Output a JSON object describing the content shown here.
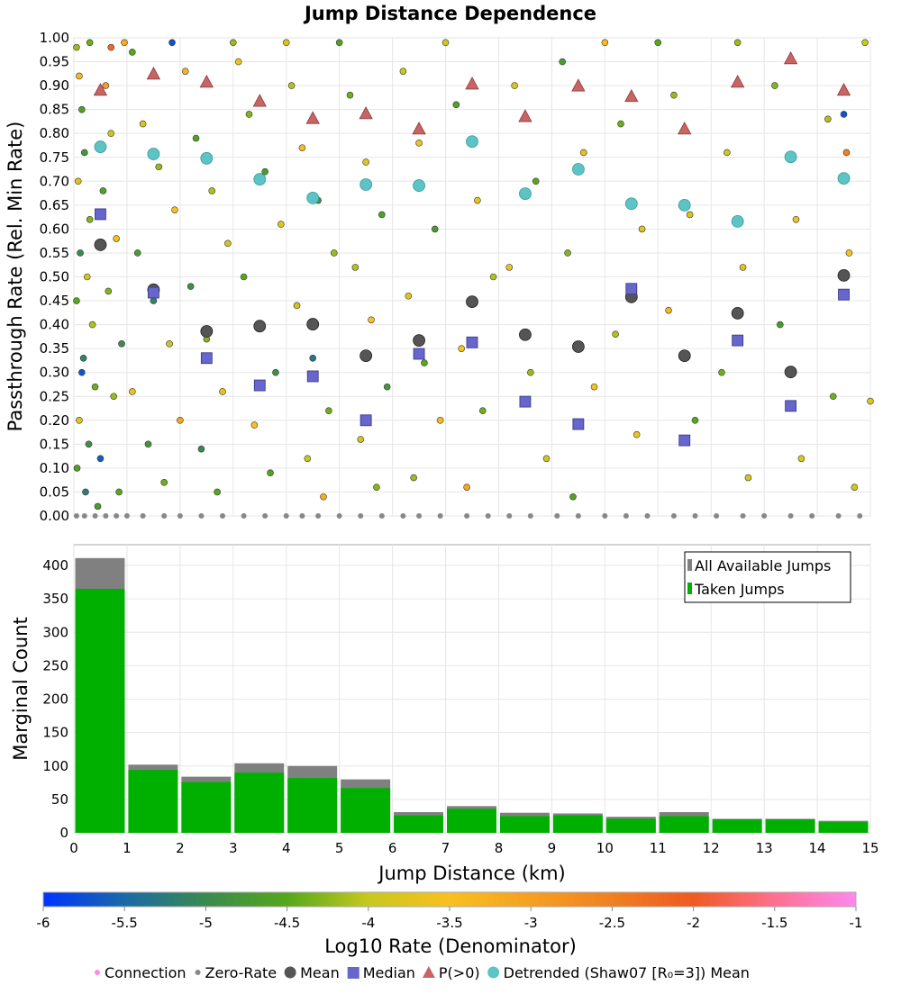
{
  "chart_data": [
    {
      "type": "scatter",
      "title": "Jump Distance Dependence",
      "ylabel": "Passthrough Rate (Rel. Min Rate)",
      "xlim": [
        0,
        15
      ],
      "ylim": [
        0,
        1
      ],
      "yticks": [
        "0.00",
        "0.05",
        "0.10",
        "0.15",
        "0.20",
        "0.25",
        "0.30",
        "0.35",
        "0.40",
        "0.45",
        "0.50",
        "0.55",
        "0.60",
        "0.65",
        "0.70",
        "0.75",
        "0.80",
        "0.85",
        "0.90",
        "0.95",
        "1.00"
      ],
      "grid": true,
      "connection_points_x_y_log10rate": [
        [
          0.05,
          0.98,
          -4.2
        ],
        [
          0.1,
          0.92,
          -3.4
        ],
        [
          0.15,
          0.85,
          -4.6
        ],
        [
          0.2,
          0.76,
          -4.8
        ],
        [
          0.08,
          0.7,
          -3.8
        ],
        [
          0.3,
          0.62,
          -4.3
        ],
        [
          0.12,
          0.55,
          -5.0
        ],
        [
          0.25,
          0.5,
          -3.9
        ],
        [
          0.05,
          0.45,
          -4.5
        ],
        [
          0.35,
          0.4,
          -4.1
        ],
        [
          0.18,
          0.33,
          -5.1
        ],
        [
          0.4,
          0.27,
          -4.4
        ],
        [
          0.1,
          0.2,
          -3.7
        ],
        [
          0.28,
          0.15,
          -4.9
        ],
        [
          0.06,
          0.1,
          -4.6
        ],
        [
          0.22,
          0.05,
          -5.2
        ],
        [
          0.45,
          0.02,
          -4.7
        ],
        [
          0.6,
          0.9,
          -3.0
        ],
        [
          0.7,
          0.8,
          -4.0
        ],
        [
          0.55,
          0.68,
          -4.6
        ],
        [
          0.8,
          0.58,
          -3.6
        ],
        [
          0.65,
          0.47,
          -4.3
        ],
        [
          0.9,
          0.36,
          -5.0
        ],
        [
          0.75,
          0.25,
          -4.2
        ],
        [
          0.5,
          0.12,
          -5.6
        ],
        [
          0.85,
          0.05,
          -4.5
        ],
        [
          0.95,
          0.99,
          -3.2
        ],
        [
          0.3,
          0.99,
          -4.4
        ],
        [
          0.7,
          0.98,
          -2.2
        ],
        [
          0.15,
          0.3,
          -5.7
        ],
        [
          1.1,
          0.97,
          -4.5
        ],
        [
          1.3,
          0.82,
          -3.8
        ],
        [
          1.6,
          0.73,
          -4.2
        ],
        [
          1.9,
          0.64,
          -3.5
        ],
        [
          1.2,
          0.55,
          -4.7
        ],
        [
          1.5,
          0.45,
          -5.1
        ],
        [
          1.8,
          0.36,
          -4.0
        ],
        [
          1.1,
          0.26,
          -3.6
        ],
        [
          1.4,
          0.15,
          -4.8
        ],
        [
          1.7,
          0.07,
          -4.4
        ],
        [
          2.1,
          0.93,
          -3.3
        ],
        [
          2.3,
          0.79,
          -4.6
        ],
        [
          2.6,
          0.68,
          -4.1
        ],
        [
          2.9,
          0.57,
          -3.9
        ],
        [
          2.2,
          0.48,
          -4.9
        ],
        [
          2.5,
          0.37,
          -4.3
        ],
        [
          2.8,
          0.26,
          -3.7
        ],
        [
          2.4,
          0.14,
          -5.0
        ],
        [
          2.7,
          0.05,
          -4.5
        ],
        [
          1.85,
          0.99,
          -5.7
        ],
        [
          2.0,
          0.2,
          -3.1
        ],
        [
          3.1,
          0.95,
          -3.6
        ],
        [
          3.3,
          0.84,
          -4.3
        ],
        [
          3.6,
          0.72,
          -4.7
        ],
        [
          3.9,
          0.61,
          -3.8
        ],
        [
          3.2,
          0.5,
          -4.5
        ],
        [
          3.5,
          0.4,
          -4.0
        ],
        [
          3.8,
          0.3,
          -4.9
        ],
        [
          3.4,
          0.19,
          -3.5
        ],
        [
          3.7,
          0.09,
          -4.6
        ],
        [
          4.1,
          0.9,
          -4.1
        ],
        [
          4.3,
          0.77,
          -3.4
        ],
        [
          4.6,
          0.66,
          -4.8
        ],
        [
          4.9,
          0.55,
          -4.2
        ],
        [
          4.2,
          0.44,
          -3.9
        ],
        [
          4.5,
          0.33,
          -5.3
        ],
        [
          4.8,
          0.22,
          -4.4
        ],
        [
          4.4,
          0.12,
          -4.0
        ],
        [
          4.7,
          0.04,
          -3.2
        ],
        [
          3.0,
          0.99,
          -4.2
        ],
        [
          4.0,
          0.99,
          -3.8
        ],
        [
          5.2,
          0.88,
          -4.4
        ],
        [
          5.5,
          0.74,
          -3.7
        ],
        [
          5.8,
          0.63,
          -4.6
        ],
        [
          5.3,
          0.52,
          -4.1
        ],
        [
          5.6,
          0.41,
          -3.5
        ],
        [
          5.9,
          0.27,
          -4.8
        ],
        [
          5.4,
          0.16,
          -3.9
        ],
        [
          5.7,
          0.06,
          -4.3
        ],
        [
          6.2,
          0.93,
          -4.0
        ],
        [
          6.5,
          0.78,
          -3.6
        ],
        [
          6.8,
          0.6,
          -4.7
        ],
        [
          6.3,
          0.46,
          -3.8
        ],
        [
          6.6,
          0.32,
          -4.5
        ],
        [
          6.9,
          0.2,
          -3.4
        ],
        [
          6.4,
          0.08,
          -4.2
        ],
        [
          7.2,
          0.86,
          -4.6
        ],
        [
          7.6,
          0.66,
          -3.7
        ],
        [
          7.9,
          0.5,
          -4.1
        ],
        [
          7.3,
          0.35,
          -3.5
        ],
        [
          7.7,
          0.22,
          -4.4
        ],
        [
          7.4,
          0.06,
          -3.1
        ],
        [
          5.0,
          0.99,
          -4.6
        ],
        [
          7.0,
          0.99,
          -3.9
        ],
        [
          8.3,
          0.9,
          -3.8
        ],
        [
          8.7,
          0.7,
          -4.5
        ],
        [
          8.2,
          0.52,
          -3.6
        ],
        [
          8.6,
          0.3,
          -4.2
        ],
        [
          8.9,
          0.12,
          -3.9
        ],
        [
          9.2,
          0.95,
          -4.7
        ],
        [
          9.6,
          0.76,
          -3.7
        ],
        [
          9.3,
          0.55,
          -4.3
        ],
        [
          9.8,
          0.27,
          -3.5
        ],
        [
          9.4,
          0.04,
          -4.6
        ],
        [
          10.3,
          0.82,
          -4.4
        ],
        [
          10.7,
          0.6,
          -3.8
        ],
        [
          10.2,
          0.38,
          -4.1
        ],
        [
          10.6,
          0.17,
          -3.6
        ],
        [
          11.3,
          0.88,
          -4.2
        ],
        [
          11.6,
          0.63,
          -3.9
        ],
        [
          11.2,
          0.43,
          -3.3
        ],
        [
          11.7,
          0.2,
          -4.5
        ],
        [
          12.3,
          0.76,
          -4.0
        ],
        [
          12.6,
          0.52,
          -3.7
        ],
        [
          12.2,
          0.3,
          -4.4
        ],
        [
          12.7,
          0.08,
          -3.9
        ],
        [
          13.2,
          0.9,
          -4.3
        ],
        [
          13.6,
          0.62,
          -3.6
        ],
        [
          13.3,
          0.4,
          -4.7
        ],
        [
          13.7,
          0.12,
          -3.8
        ],
        [
          14.2,
          0.83,
          -4.1
        ],
        [
          14.6,
          0.55,
          -3.5
        ],
        [
          14.3,
          0.25,
          -4.4
        ],
        [
          14.7,
          0.06,
          -3.9
        ],
        [
          14.5,
          0.84,
          -5.7
        ],
        [
          14.55,
          0.76,
          -2.5
        ],
        [
          12.5,
          0.99,
          -4.2
        ],
        [
          10.0,
          0.99,
          -3.4
        ],
        [
          11.0,
          0.99,
          -4.5
        ],
        [
          14.9,
          0.99,
          -4.0
        ],
        [
          15.0,
          0.24,
          -3.8
        ]
      ],
      "zero_rate_x": [
        0.05,
        0.2,
        0.4,
        0.6,
        0.8,
        1.0,
        1.3,
        1.7,
        2.0,
        2.4,
        2.8,
        3.2,
        3.6,
        4.0,
        4.3,
        4.6,
        5.0,
        5.4,
        5.8,
        6.2,
        6.5,
        6.9,
        7.4,
        7.8,
        8.2,
        8.6,
        9.1,
        9.5,
        10.0,
        10.4,
        10.8,
        11.3,
        11.7,
        12.1,
        12.6,
        13.0,
        13.5,
        13.9,
        14.4,
        14.8
      ],
      "bin_centers": [
        0.5,
        1.5,
        2.5,
        3.5,
        4.5,
        5.5,
        6.5,
        7.5,
        8.5,
        9.5,
        10.5,
        11.5,
        12.5,
        13.5,
        14.5
      ],
      "series": [
        {
          "name": "Mean",
          "values": [
            0.567,
            0.473,
            0.386,
            0.397,
            0.401,
            0.335,
            0.367,
            0.448,
            0.379,
            0.354,
            0.458,
            0.335,
            0.424,
            0.301,
            0.503
          ]
        },
        {
          "name": "Median",
          "values": [
            0.631,
            0.467,
            0.33,
            0.273,
            0.292,
            0.2,
            0.339,
            0.363,
            0.239,
            0.192,
            0.475,
            0.158,
            0.367,
            0.23,
            0.463
          ]
        },
        {
          "name": "P(>0)",
          "values": [
            0.891,
            0.925,
            0.908,
            0.868,
            0.832,
            0.842,
            0.81,
            0.904,
            0.836,
            0.9,
            0.878,
            0.81,
            0.908,
            0.957,
            0.891
          ]
        },
        {
          "name": "Detrended (Shaw07 [R₀=3]) Mean",
          "values": [
            0.772,
            0.757,
            0.748,
            0.704,
            0.665,
            0.693,
            0.691,
            0.783,
            0.674,
            0.725,
            0.653,
            0.65,
            0.616,
            0.751,
            0.706
          ]
        }
      ]
    },
    {
      "type": "bar",
      "xlabel": "Jump Distance (km)",
      "ylabel": "Marginal Count",
      "xlim": [
        0,
        15
      ],
      "ylim": [
        0,
        420
      ],
      "xticks": [
        "0",
        "1",
        "2",
        "3",
        "4",
        "5",
        "6",
        "7",
        "8",
        "9",
        "10",
        "11",
        "12",
        "13",
        "14",
        "15"
      ],
      "yticks": [
        "0",
        "50",
        "100",
        "150",
        "200",
        "250",
        "300",
        "350",
        "400"
      ],
      "legend_position": "top-right",
      "series": [
        {
          "name": "All Available Jumps",
          "color": "#808080",
          "values": [
            411,
            102,
            84,
            104,
            100,
            80,
            31,
            40,
            30,
            29,
            24,
            31,
            21,
            21,
            18
          ]
        },
        {
          "name": "Taken Jumps",
          "color": "#00b000",
          "values": [
            365,
            94,
            76,
            90,
            82,
            67,
            26,
            36,
            25,
            26,
            21,
            25,
            20,
            20,
            16
          ]
        }
      ]
    }
  ],
  "colorbar": {
    "label": "Log10 Rate (Denominator)",
    "range": [
      -6,
      -1
    ],
    "ticks": [
      "-6",
      "-5.5",
      "-5",
      "-4.5",
      "-4",
      "-3.5",
      "-3",
      "-2.5",
      "-2",
      "-1.5",
      "-1"
    ],
    "stops": [
      "#0033ff",
      "#1a6aa8",
      "#3a8a50",
      "#55a81a",
      "#c8c81e",
      "#f8c020",
      "#f5a020",
      "#f08020",
      "#ee5a20",
      "#ff7090",
      "#ff88ee"
    ]
  },
  "legend": {
    "items": [
      {
        "label": "Connection",
        "color": "#ff88ee"
      },
      {
        "label": "Zero-Rate",
        "color": "#888888"
      },
      {
        "label": "Mean",
        "color": "#555555"
      },
      {
        "label": "Median",
        "color": "#6666cc"
      },
      {
        "label": "P(>0)",
        "color": "#c86464"
      },
      {
        "label": "Detrended (Shaw07 [R₀=3]) Mean",
        "color": "#5cc4c4"
      }
    ]
  }
}
